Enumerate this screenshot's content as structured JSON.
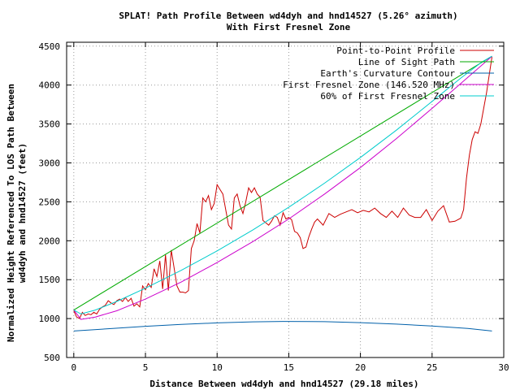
{
  "chart_data": {
    "type": "line",
    "title": "SPLAT! Path Profile Between wd4dyh and hnd14527 (5.26° azimuth)",
    "subtitle": "With First Fresnel Zone",
    "xlabel": "Distance Between wd4dyh and hnd14527 (29.18 miles)",
    "ylabel_lines": [
      "Normalized Height Referenced To LOS Path Between",
      "wd4dyh and hnd14527 (feet)"
    ],
    "xlim": [
      -0.5,
      30
    ],
    "ylim": [
      500,
      4550
    ],
    "x_ticks": [
      0,
      5,
      10,
      15,
      20,
      25,
      30
    ],
    "y_ticks": [
      500,
      1000,
      1500,
      2000,
      2500,
      3000,
      3500,
      4000,
      4500
    ],
    "grid": true,
    "legend_position": "top-right",
    "series": [
      {
        "name": "Point-to-Point Profile",
        "color": "#cc0000",
        "x": [
          0,
          0.2,
          0.4,
          0.6,
          0.8,
          1.0,
          1.2,
          1.4,
          1.6,
          1.8,
          2.0,
          2.2,
          2.4,
          2.6,
          2.8,
          3.0,
          3.2,
          3.4,
          3.6,
          3.8,
          4.0,
          4.2,
          4.4,
          4.6,
          4.8,
          5.0,
          5.2,
          5.4,
          5.6,
          5.8,
          6.0,
          6.2,
          6.4,
          6.6,
          6.8,
          7.0,
          7.2,
          7.4,
          7.6,
          7.8,
          8.0,
          8.2,
          8.4,
          8.6,
          8.8,
          9.0,
          9.2,
          9.4,
          9.6,
          9.8,
          10.0,
          10.2,
          10.4,
          10.6,
          10.8,
          11.0,
          11.2,
          11.4,
          11.6,
          11.8,
          12.0,
          12.2,
          12.4,
          12.6,
          12.8,
          13.0,
          13.2,
          13.4,
          13.6,
          13.8,
          14.0,
          14.2,
          14.4,
          14.6,
          14.8,
          15.0,
          15.2,
          15.4,
          15.6,
          15.8,
          16.0,
          16.2,
          16.4,
          16.6,
          16.8,
          17.0,
          17.4,
          17.8,
          18.2,
          18.6,
          19.0,
          19.4,
          19.8,
          20.2,
          20.6,
          21.0,
          21.4,
          21.8,
          22.2,
          22.6,
          23.0,
          23.4,
          23.8,
          24.2,
          24.6,
          25.0,
          25.4,
          25.8,
          26.2,
          26.6,
          27.0,
          27.2,
          27.4,
          27.6,
          27.8,
          28.0,
          28.2,
          28.4,
          28.6,
          28.8,
          29.0,
          29.18
        ],
        "y": [
          1100,
          1020,
          1000,
          1080,
          1040,
          1060,
          1050,
          1080,
          1060,
          1120,
          1150,
          1170,
          1230,
          1200,
          1180,
          1230,
          1250,
          1220,
          1270,
          1220,
          1260,
          1160,
          1190,
          1150,
          1420,
          1370,
          1450,
          1400,
          1640,
          1540,
          1740,
          1380,
          1820,
          1360,
          1880,
          1650,
          1420,
          1340,
          1340,
          1330,
          1360,
          1900,
          2000,
          2220,
          2100,
          2550,
          2500,
          2580,
          2400,
          2480,
          2720,
          2660,
          2600,
          2400,
          2200,
          2150,
          2550,
          2600,
          2450,
          2350,
          2500,
          2680,
          2620,
          2680,
          2600,
          2560,
          2260,
          2230,
          2200,
          2250,
          2320,
          2300,
          2200,
          2360,
          2280,
          2300,
          2270,
          2120,
          2100,
          2040,
          1900,
          1920,
          2050,
          2150,
          2240,
          2280,
          2200,
          2350,
          2300,
          2340,
          2370,
          2400,
          2360,
          2390,
          2370,
          2420,
          2350,
          2300,
          2380,
          2300,
          2420,
          2330,
          2300,
          2300,
          2400,
          2260,
          2380,
          2450,
          2240,
          2250,
          2290,
          2400,
          2800,
          3100,
          3300,
          3400,
          3380,
          3500,
          3700,
          3900,
          4150,
          4360
        ]
      },
      {
        "name": "Line of Sight Path",
        "color": "#00aa00",
        "x": [
          0,
          29.18
        ],
        "y": [
          1110,
          4370
        ]
      },
      {
        "name": "Earth's Curvature Contour",
        "color": "#0060aa",
        "x": [
          0,
          2.5,
          5,
          7.5,
          10,
          12.5,
          14.59,
          17.5,
          20,
          22.5,
          25,
          27.5,
          29.18
        ],
        "y": [
          840,
          871,
          901,
          925,
          945,
          958,
          963,
          960,
          948,
          929,
          905,
          873,
          840
        ]
      },
      {
        "name": "First Fresnel Zone (146.520 MHz)",
        "color": "#cc00cc",
        "x": [
          0,
          0.5,
          1.5,
          3,
          5,
          7.5,
          10,
          12.5,
          15,
          17.5,
          20,
          22.5,
          25,
          27,
          28.5,
          29.18
        ],
        "y": [
          1110,
          990,
          1020,
          1100,
          1250,
          1470,
          1720,
          1990,
          2280,
          2600,
          2940,
          3310,
          3700,
          4020,
          4260,
          4370
        ]
      },
      {
        "name": "60% of First Fresnel Zone",
        "color": "#00cccc",
        "x": [
          0,
          0.5,
          1.5,
          3,
          5,
          7.5,
          10,
          12.5,
          15,
          17.5,
          20,
          22.5,
          25,
          27,
          28.5,
          29.18
        ],
        "y": [
          1110,
          1060,
          1110,
          1220,
          1390,
          1620,
          1870,
          2140,
          2430,
          2740,
          3070,
          3420,
          3790,
          4090,
          4300,
          4370
        ]
      }
    ]
  }
}
